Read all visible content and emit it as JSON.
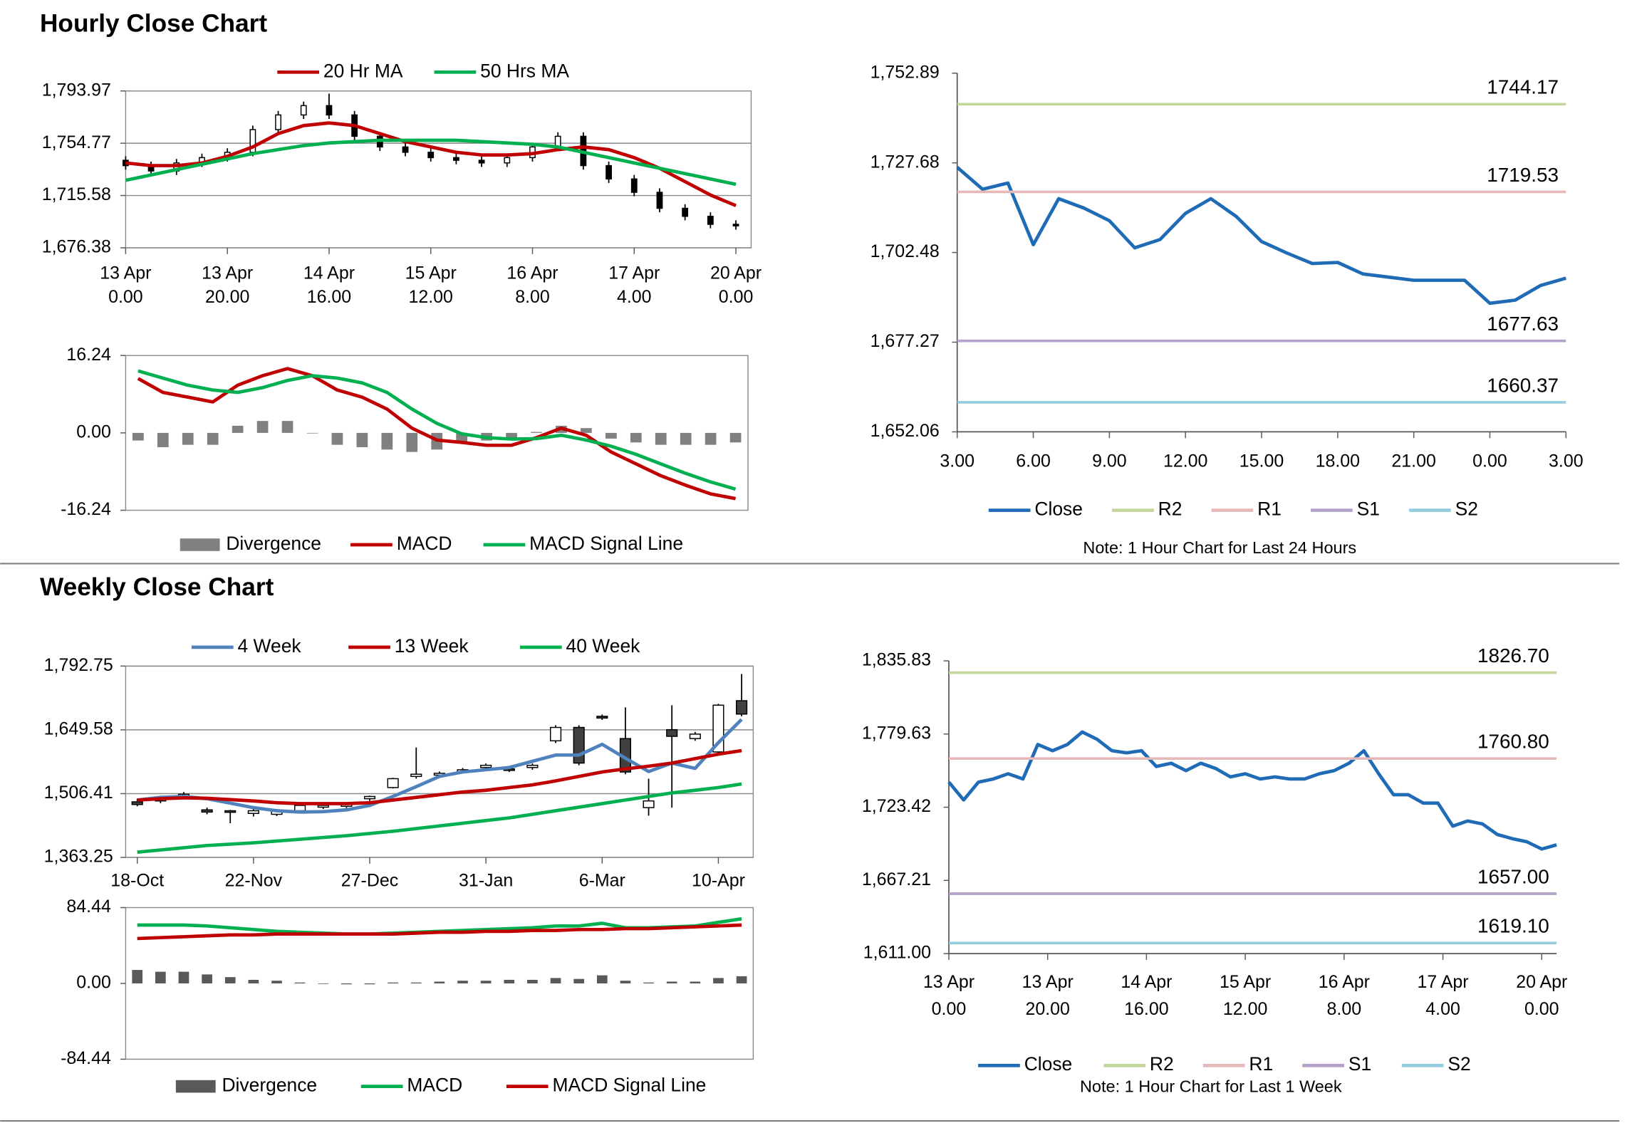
{
  "sections": [
    {
      "title": "Hourly Close Chart"
    },
    {
      "title": "Weekly Close Chart"
    }
  ],
  "chart_data": [
    {
      "type": "candlestick",
      "up_color": "#ffffff",
      "down_color": "#000000",
      "grid": true,
      "x": [
        0,
        5,
        10,
        15,
        20,
        25,
        30,
        35,
        40,
        45,
        50,
        55,
        60,
        65,
        70,
        75,
        80,
        85,
        90,
        95,
        100,
        105,
        110,
        115,
        120
      ],
      "open": [
        1742,
        1738,
        1734,
        1740,
        1744,
        1748,
        1765,
        1776,
        1783,
        1776,
        1760,
        1752,
        1748,
        1744,
        1742,
        1740,
        1744,
        1752,
        1760,
        1738,
        1728,
        1718,
        1706,
        1700,
        1694
      ],
      "high": [
        1745,
        1741,
        1743,
        1747,
        1751,
        1768,
        1779,
        1786,
        1792,
        1779,
        1763,
        1755,
        1751,
        1747,
        1745,
        1747,
        1755,
        1763,
        1763,
        1741,
        1731,
        1721,
        1709,
        1703,
        1697
      ],
      "low": [
        1735,
        1731,
        1731,
        1737,
        1741,
        1745,
        1762,
        1773,
        1773,
        1757,
        1749,
        1745,
        1741,
        1739,
        1737,
        1737,
        1741,
        1749,
        1735,
        1725,
        1715,
        1703,
        1697,
        1691,
        1690
      ],
      "close": [
        1738,
        1734,
        1740,
        1744,
        1748,
        1765,
        1776,
        1783,
        1776,
        1760,
        1752,
        1748,
        1744,
        1742,
        1740,
        1744,
        1752,
        1760,
        1738,
        1728,
        1718,
        1706,
        1700,
        1694,
        1693
      ],
      "series": [
        {
          "name": "20 Hr MA",
          "color": "#c00000",
          "values": [
            1740,
            1738,
            1738,
            1740,
            1745,
            1752,
            1762,
            1768,
            1770,
            1768,
            1762,
            1756,
            1752,
            1748,
            1746,
            1746,
            1747,
            1750,
            1752,
            1750,
            1744,
            1736,
            1726,
            1716,
            1708
          ]
        },
        {
          "name": "50 Hrs MA",
          "color": "#00b050",
          "values": [
            1727,
            1731,
            1735,
            1739,
            1743,
            1747,
            1750,
            1753,
            1755,
            1756,
            1757,
            1757,
            1757,
            1757,
            1756,
            1755,
            1754,
            1752,
            1748,
            1744,
            1740,
            1736,
            1732,
            1728,
            1724
          ]
        }
      ],
      "xlim": [
        0,
        123
      ],
      "xticks": [
        {
          "value": 0,
          "label": [
            "13 Apr",
            "0.00"
          ]
        },
        {
          "value": 20,
          "label": [
            "13 Apr",
            "20.00"
          ]
        },
        {
          "value": 40,
          "label": [
            "14 Apr",
            "16.00"
          ]
        },
        {
          "value": 60,
          "label": [
            "15 Apr",
            "12.00"
          ]
        },
        {
          "value": 80,
          "label": [
            "16 Apr",
            "8.00"
          ]
        },
        {
          "value": 100,
          "label": [
            "17 Apr",
            "4.00"
          ]
        },
        {
          "value": 120,
          "label": [
            "20 Apr",
            "0.00"
          ]
        }
      ],
      "ylim": [
        1676.38,
        1793.97
      ],
      "yticks": [
        {
          "value": 1676.38,
          "label": "1,676.38"
        },
        {
          "value": 1715.58,
          "label": "1,715.58"
        },
        {
          "value": 1754.77,
          "label": "1,754.77"
        },
        {
          "value": 1793.97,
          "label": "1,793.97"
        }
      ]
    },
    {
      "type": "combo",
      "grid": false,
      "series": [
        {
          "name": "Divergence",
          "kind": "bar",
          "color": "#808080",
          "values": [
            -1.6,
            -3,
            -2.5,
            -2.5,
            1.5,
            2.5,
            2.5,
            0,
            -2.5,
            -3,
            -3.5,
            -4,
            -3.5,
            -1.8,
            -1.6,
            -1.3,
            0.2,
            1.5,
            1,
            -1.2,
            -2,
            -2.5,
            -2.5,
            -2.5,
            -2
          ]
        },
        {
          "name": "MACD",
          "color": "#c00000",
          "values": [
            11.4,
            8.5,
            7.5,
            6.5,
            10,
            12,
            13.5,
            12,
            9,
            7.5,
            5,
            1,
            -1.5,
            -2,
            -2.6,
            -2.6,
            -1,
            1,
            -0.5,
            -4,
            -6.5,
            -9,
            -11,
            -12.8,
            -13.8
          ]
        },
        {
          "name": "MACD Signal Line",
          "color": "#00b050",
          "values": [
            13,
            11.5,
            10,
            9,
            8.5,
            9.5,
            11,
            12,
            11.5,
            10.5,
            8.5,
            5,
            2,
            -0.2,
            -1,
            -1.3,
            -1.2,
            -0.5,
            -1.5,
            -2.8,
            -4.5,
            -6.5,
            -8.5,
            -10.3,
            -11.8
          ]
        }
      ],
      "ylim": [
        -16.24,
        16.24
      ],
      "yticks": [
        -16.24,
        {
          "value": 0,
          "label": "0.00"
        },
        16.24
      ]
    },
    {
      "type": "line",
      "grid": false,
      "note": "Note: 1 Hour Chart for Last 24 Hours",
      "x": [
        0,
        1,
        2,
        3,
        4,
        5,
        6,
        7,
        8,
        9,
        10,
        11,
        12,
        13,
        14,
        15,
        16,
        17,
        18,
        19,
        20,
        21,
        22,
        23,
        24
      ],
      "series": [
        {
          "name": "Close",
          "color": "#1f6bb5",
          "values": [
            1726.43,
            1720.26,
            1722.02,
            1704.67,
            1717.61,
            1714.96,
            1711.42,
            1703.79,
            1706.14,
            1713.49,
            1717.61,
            1712.61,
            1705.56,
            1702.32,
            1699.38,
            1699.68,
            1696.44,
            1695.56,
            1694.68,
            1694.68,
            1694.68,
            1688.21,
            1689.09,
            1693.21,
            1695.27
          ]
        },
        {
          "name": "R2",
          "kind": "hline",
          "color": "#c3d69b",
          "value": 1744.17
        },
        {
          "name": "R1",
          "kind": "hline",
          "color": "#e6b9b8",
          "value": 1719.53
        },
        {
          "name": "S1",
          "kind": "hline",
          "color": "#b3a2c7",
          "value": 1677.63
        },
        {
          "name": "S2",
          "kind": "hline",
          "color": "#93cddd",
          "value": 1660.37
        }
      ],
      "xlim": [
        0,
        24
      ],
      "xticks": [
        {
          "value": 0,
          "label": "3.00"
        },
        {
          "value": 3,
          "label": "6.00"
        },
        {
          "value": 6,
          "label": "9.00"
        },
        {
          "value": 9,
          "label": "12.00"
        },
        {
          "value": 12,
          "label": "15.00"
        },
        {
          "value": 15,
          "label": "18.00"
        },
        {
          "value": 18,
          "label": "21.00"
        },
        {
          "value": 21,
          "label": "0.00"
        },
        {
          "value": 24,
          "label": "3.00"
        }
      ],
      "ylim": [
        1652.06,
        1752.89
      ],
      "yticks": [
        {
          "value": 1652.06,
          "label": "1,652.06"
        },
        {
          "value": 1677.27,
          "label": "1,677.27"
        },
        {
          "value": 1702.48,
          "label": "1,702.48"
        },
        {
          "value": 1727.68,
          "label": "1,727.68"
        },
        {
          "value": 1752.89,
          "label": "1,752.89"
        }
      ]
    },
    {
      "type": "candlestick",
      "up_color": "#ffffff",
      "down_color": "#404040",
      "grid": true,
      "categories": [
        "18-Oct",
        null,
        null,
        null,
        null,
        "22-Nov",
        null,
        null,
        null,
        null,
        "27-Dec",
        null,
        null,
        null,
        null,
        "31-Jan",
        null,
        null,
        null,
        null,
        "6-Mar",
        null,
        null,
        null,
        null,
        "10-Apr",
        null
      ],
      "open": [
        1488,
        1490,
        1500,
        1470,
        1468,
        1462,
        1460,
        1468,
        1476,
        1478,
        1495,
        1520,
        1545,
        1548,
        1555,
        1565,
        1562,
        1565,
        1625,
        1655,
        1680,
        1630,
        1475,
        1650,
        1630,
        1600,
        1715
      ],
      "high": [
        1495,
        1500,
        1510,
        1475,
        1470,
        1472,
        1472,
        1482,
        1484,
        1486,
        1502,
        1542,
        1610,
        1556,
        1564,
        1574,
        1568,
        1574,
        1660,
        1660,
        1684,
        1700,
        1540,
        1705,
        1645,
        1708,
        1775
      ],
      "low": [
        1478,
        1485,
        1496,
        1460,
        1440,
        1455,
        1456,
        1465,
        1472,
        1474,
        1490,
        1518,
        1540,
        1545,
        1552,
        1560,
        1555,
        1560,
        1620,
        1570,
        1672,
        1550,
        1457,
        1475,
        1625,
        1595,
        1680
      ],
      "close": [
        1482,
        1495,
        1505,
        1465,
        1466,
        1468,
        1470,
        1480,
        1480,
        1482,
        1500,
        1540,
        1550,
        1552,
        1560,
        1570,
        1560,
        1570,
        1655,
        1575,
        1676,
        1555,
        1490,
        1635,
        1640,
        1705,
        1685
      ],
      "series": [
        {
          "name": "4 Week",
          "color": "#4f81bd",
          "values": [
            1492,
            1498,
            1500,
            1495,
            1485,
            1475,
            1468,
            1465,
            1466,
            1470,
            1480,
            1500,
            1522,
            1545,
            1555,
            1560,
            1565,
            1579,
            1593,
            1593,
            1617,
            1586,
            1556,
            1575,
            1563,
            1621,
            1673
          ]
        },
        {
          "name": "13 Week",
          "color": "#c00000",
          "values": [
            1492,
            1495,
            1497,
            1496,
            1493,
            1490,
            1486,
            1484,
            1484,
            1484,
            1486,
            1492,
            1498,
            1504,
            1510,
            1514,
            1520,
            1526,
            1535,
            1545,
            1555,
            1562,
            1568,
            1575,
            1585,
            1595,
            1603
          ]
        },
        {
          "name": "40 Week",
          "color": "#00b050",
          "values": [
            1375,
            1380,
            1385,
            1390,
            1393,
            1396,
            1400,
            1404,
            1408,
            1412,
            1417,
            1422,
            1428,
            1434,
            1440,
            1446,
            1452,
            1460,
            1468,
            1476,
            1484,
            1492,
            1500,
            1508,
            1514,
            1520,
            1528
          ]
        }
      ],
      "ylim": [
        1363.25,
        1792.75
      ],
      "yticks": [
        {
          "value": 1363.25,
          "label": "1,363.25"
        },
        {
          "value": 1506.41,
          "label": "1,506.41"
        },
        {
          "value": 1649.58,
          "label": "1,649.58"
        },
        {
          "value": 1792.75,
          "label": "1,792.75"
        }
      ]
    },
    {
      "type": "combo",
      "grid": false,
      "series": [
        {
          "name": "Divergence",
          "kind": "bar",
          "color": "#595959",
          "values": [
            15,
            13,
            13,
            10,
            7,
            4,
            3,
            1,
            0,
            -1,
            -1,
            1,
            1,
            2,
            3,
            3,
            4,
            4,
            6,
            5,
            9,
            3,
            1,
            2,
            2,
            6,
            8
          ]
        },
        {
          "name": "MACD",
          "color": "#00b050",
          "values": [
            65,
            65,
            65,
            64,
            62,
            60,
            58,
            57,
            56,
            55,
            55,
            56,
            57,
            58,
            59,
            60,
            61,
            62,
            64,
            64,
            67,
            62,
            62,
            63,
            64,
            68,
            72
          ]
        },
        {
          "name": "MACD Signal Line",
          "color": "#c00000",
          "values": [
            50,
            51,
            52,
            53,
            54,
            54,
            55,
            55,
            55,
            55,
            55,
            55,
            56,
            57,
            57,
            58,
            58,
            59,
            59,
            60,
            60,
            61,
            61,
            62,
            63,
            64,
            65
          ]
        }
      ],
      "ylim": [
        -84.44,
        84.44
      ],
      "yticks": [
        -84.44,
        {
          "value": 0,
          "label": "0.00"
        },
        84.44
      ]
    },
    {
      "type": "line",
      "grid": false,
      "note": "Note: 1 Hour Chart for Last 1 Week",
      "x": [
        0,
        3,
        6,
        9,
        12,
        15,
        18,
        21,
        24,
        27,
        30,
        33,
        36,
        39,
        42,
        45,
        48,
        51,
        54,
        57,
        60,
        63,
        66,
        69,
        72,
        75,
        78,
        81,
        84,
        87,
        90,
        93,
        96,
        99,
        102,
        105,
        108,
        111,
        114,
        117,
        120,
        123
      ],
      "series": [
        {
          "name": "Close",
          "color": "#1f6bb5",
          "values": [
            1742.7,
            1729,
            1742.7,
            1745.1,
            1749.1,
            1745.1,
            1771.6,
            1766.8,
            1771.6,
            1781.2,
            1775.6,
            1766.8,
            1765.2,
            1766.8,
            1754.7,
            1757.2,
            1751.5,
            1757.2,
            1753.2,
            1746.7,
            1749.1,
            1745.1,
            1746.7,
            1745.1,
            1745.1,
            1749.1,
            1751.5,
            1757.2,
            1766.8,
            1749.1,
            1733,
            1733,
            1726.6,
            1726.6,
            1708.9,
            1712.9,
            1710.6,
            1702.5,
            1699.3,
            1696.9,
            1691.3,
            1694.5
          ]
        },
        {
          "name": "R2",
          "kind": "hline",
          "color": "#c3d69b",
          "value": 1826.7,
          "value_label": "1826.70"
        },
        {
          "name": "R1",
          "kind": "hline",
          "color": "#e6b9b8",
          "value": 1760.8,
          "value_label": "1760.80"
        },
        {
          "name": "S1",
          "kind": "hline",
          "color": "#b3a2c7",
          "value": 1657,
          "value_label": "1657.00"
        },
        {
          "name": "S2",
          "kind": "hline",
          "color": "#93cddd",
          "value": 1619.1,
          "value_label": "1619.10"
        }
      ],
      "xlim": [
        0,
        123
      ],
      "xticks": [
        {
          "value": 0,
          "label": [
            "13 Apr",
            "0.00"
          ]
        },
        {
          "value": 20,
          "label": [
            "13 Apr",
            "20.00"
          ]
        },
        {
          "value": 40,
          "label": [
            "14 Apr",
            "16.00"
          ]
        },
        {
          "value": 60,
          "label": [
            "15 Apr",
            "12.00"
          ]
        },
        {
          "value": 80,
          "label": [
            "16 Apr",
            "8.00"
          ]
        },
        {
          "value": 100,
          "label": [
            "17 Apr",
            "4.00"
          ]
        },
        {
          "value": 120,
          "label": [
            "20 Apr",
            "0.00"
          ]
        }
      ],
      "ylim": [
        1611,
        1835.83
      ],
      "yticks": [
        {
          "value": 1611,
          "label": "1,611.00"
        },
        {
          "value": 1667.21,
          "label": "1,667.21"
        },
        {
          "value": 1723.42,
          "label": "1,723.42"
        },
        {
          "value": 1779.63,
          "label": "1,779.63"
        },
        {
          "value": 1835.83,
          "label": "1,835.83"
        }
      ]
    }
  ]
}
